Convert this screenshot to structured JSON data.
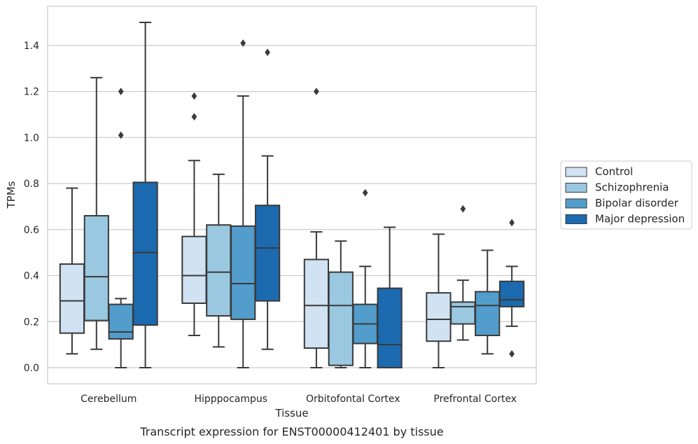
{
  "chart_data": {
    "type": "box",
    "caption": "Transcript expression for ENST00000412401 by tissue",
    "xlabel": "Tissue",
    "ylabel": "TPMs",
    "ylim": [
      -0.07,
      1.57
    ],
    "yticks": [
      0.0,
      0.2,
      0.4,
      0.6,
      0.8,
      1.0,
      1.2,
      1.4
    ],
    "ytick_labels": [
      "0.0",
      "0.2",
      "0.4",
      "0.6",
      "0.8",
      "1.0",
      "1.2",
      "1.4"
    ],
    "grid": true,
    "legend_position": "right",
    "categories": [
      "Cerebellum",
      "Hipppocampus",
      "Orbitofontal Cortex",
      "Prefrontal Cortex"
    ],
    "series": [
      {
        "name": "Control",
        "color": "#d1e2f2",
        "boxes": [
          {
            "whislo": 0.06,
            "q1": 0.15,
            "med": 0.29,
            "q3": 0.45,
            "whishi": 0.78,
            "fliers": []
          },
          {
            "whislo": 0.14,
            "q1": 0.28,
            "med": 0.4,
            "q3": 0.57,
            "whishi": 0.9,
            "fliers": [
              1.09,
              1.18
            ]
          },
          {
            "whislo": 0.0,
            "q1": 0.085,
            "med": 0.27,
            "q3": 0.47,
            "whishi": 0.59,
            "fliers": [
              1.2
            ]
          },
          {
            "whislo": 0.0,
            "q1": 0.115,
            "med": 0.21,
            "q3": 0.325,
            "whishi": 0.58,
            "fliers": []
          }
        ]
      },
      {
        "name": "Schizophrenia",
        "color": "#9ac8e0",
        "boxes": [
          {
            "whislo": 0.08,
            "q1": 0.205,
            "med": 0.395,
            "q3": 0.66,
            "whishi": 1.26,
            "fliers": []
          },
          {
            "whislo": 0.09,
            "q1": 0.225,
            "med": 0.415,
            "q3": 0.62,
            "whishi": 0.84,
            "fliers": []
          },
          {
            "whislo": 0.0,
            "q1": 0.01,
            "med": 0.27,
            "q3": 0.415,
            "whishi": 0.55,
            "fliers": []
          },
          {
            "whislo": 0.12,
            "q1": 0.19,
            "med": 0.265,
            "q3": 0.285,
            "whishi": 0.38,
            "fliers": [
              0.69
            ]
          }
        ]
      },
      {
        "name": "Bipolar disorder",
        "color": "#529dcc",
        "boxes": [
          {
            "whislo": 0.0,
            "q1": 0.125,
            "med": 0.155,
            "q3": 0.275,
            "whishi": 0.3,
            "fliers": [
              1.01,
              1.2
            ]
          },
          {
            "whislo": 0.0,
            "q1": 0.21,
            "med": 0.365,
            "q3": 0.615,
            "whishi": 1.18,
            "fliers": [
              1.41
            ]
          },
          {
            "whislo": 0.0,
            "q1": 0.105,
            "med": 0.19,
            "q3": 0.275,
            "whishi": 0.44,
            "fliers": [
              0.76
            ]
          },
          {
            "whislo": 0.06,
            "q1": 0.14,
            "med": 0.27,
            "q3": 0.33,
            "whishi": 0.51,
            "fliers": []
          }
        ]
      },
      {
        "name": "Major depression",
        "color": "#1c6aaf",
        "boxes": [
          {
            "whislo": 0.0,
            "q1": 0.185,
            "med": 0.5,
            "q3": 0.805,
            "whishi": 1.5,
            "fliers": []
          },
          {
            "whislo": 0.08,
            "q1": 0.29,
            "med": 0.52,
            "q3": 0.705,
            "whishi": 0.92,
            "fliers": [
              1.37
            ]
          },
          {
            "whislo": 0.0,
            "q1": 0.0,
            "med": 0.1,
            "q3": 0.345,
            "whishi": 0.61,
            "fliers": []
          },
          {
            "whislo": 0.18,
            "q1": 0.265,
            "med": 0.295,
            "q3": 0.375,
            "whishi": 0.44,
            "fliers": [
              0.06,
              0.63
            ]
          }
        ]
      }
    ]
  }
}
